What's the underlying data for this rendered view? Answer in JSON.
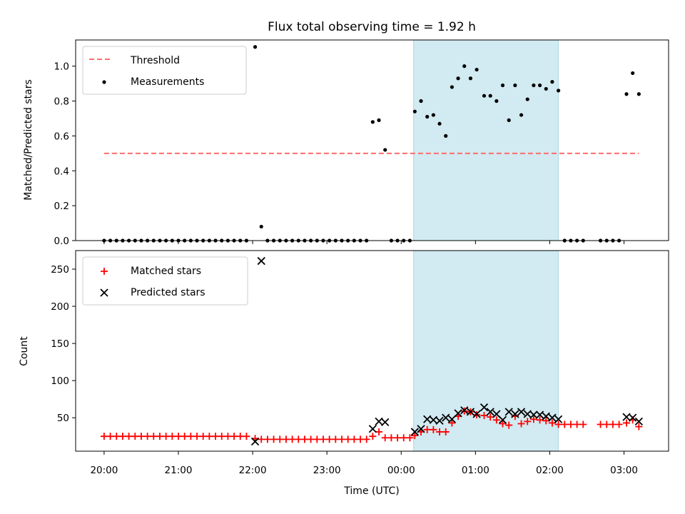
{
  "chart_data": [
    {
      "type": "scatter",
      "title": "Flux total observing time = 1.92 h",
      "ylabel": "Matched/Predicted stars",
      "xlabel": "",
      "ylim": [
        0,
        1.15
      ],
      "xlim": [
        "19:37",
        "03:36"
      ],
      "yticks": [
        "0.0",
        "0.2",
        "0.4",
        "0.6",
        "0.8",
        "1.0"
      ],
      "grid": false,
      "legend": {
        "placement": "top-left",
        "entries": [
          "Threshold",
          "Measurements"
        ]
      },
      "shaded_interval": {
        "start": "00:10",
        "end": "02:07",
        "color": "#add8e6"
      },
      "threshold": {
        "name": "Threshold",
        "value": 0.5,
        "start": "20:00",
        "end": "03:12",
        "color": "#ff6b6b"
      },
      "series": [
        {
          "name": "Measurements",
          "color": "#000000",
          "marker": "dot",
          "points": [
            [
              "20:00",
              0
            ],
            [
              "20:05",
              0
            ],
            [
              "20:10",
              0
            ],
            [
              "20:15",
              0
            ],
            [
              "20:20",
              0
            ],
            [
              "20:25",
              0
            ],
            [
              "20:30",
              0
            ],
            [
              "20:35",
              0
            ],
            [
              "20:40",
              0
            ],
            [
              "20:45",
              0
            ],
            [
              "20:50",
              0
            ],
            [
              "20:55",
              0
            ],
            [
              "21:00",
              0
            ],
            [
              "21:05",
              0
            ],
            [
              "21:10",
              0
            ],
            [
              "21:15",
              0
            ],
            [
              "21:20",
              0
            ],
            [
              "21:25",
              0
            ],
            [
              "21:30",
              0
            ],
            [
              "21:35",
              0
            ],
            [
              "21:40",
              0
            ],
            [
              "21:45",
              0
            ],
            [
              "21:50",
              0
            ],
            [
              "21:55",
              0
            ],
            [
              "22:02",
              1.11
            ],
            [
              "22:07",
              0.08
            ],
            [
              "22:12",
              0
            ],
            [
              "22:17",
              0
            ],
            [
              "22:22",
              0
            ],
            [
              "22:27",
              0
            ],
            [
              "22:32",
              0
            ],
            [
              "22:37",
              0
            ],
            [
              "22:42",
              0
            ],
            [
              "22:47",
              0
            ],
            [
              "22:52",
              0
            ],
            [
              "22:57",
              0
            ],
            [
              "23:02",
              0
            ],
            [
              "23:07",
              0
            ],
            [
              "23:12",
              0
            ],
            [
              "23:17",
              0
            ],
            [
              "23:22",
              0
            ],
            [
              "23:27",
              0
            ],
            [
              "23:32",
              0
            ],
            [
              "23:37",
              0.68
            ],
            [
              "23:42",
              0.69
            ],
            [
              "23:47",
              0.52
            ],
            [
              "23:52",
              0
            ],
            [
              "23:57",
              0
            ],
            [
              "00:02",
              0
            ],
            [
              "00:07",
              0
            ],
            [
              "00:11",
              0.74
            ],
            [
              "00:16",
              0.8
            ],
            [
              "00:21",
              0.71
            ],
            [
              "00:26",
              0.72
            ],
            [
              "00:31",
              0.67
            ],
            [
              "00:36",
              0.6
            ],
            [
              "00:41",
              0.88
            ],
            [
              "00:46",
              0.93
            ],
            [
              "00:51",
              1.0
            ],
            [
              "00:56",
              0.93
            ],
            [
              "01:01",
              0.98
            ],
            [
              "01:07",
              0.83
            ],
            [
              "01:12",
              0.83
            ],
            [
              "01:17",
              0.8
            ],
            [
              "01:22",
              0.89
            ],
            [
              "01:27",
              0.69
            ],
            [
              "01:32",
              0.89
            ],
            [
              "01:37",
              0.72
            ],
            [
              "01:42",
              0.81
            ],
            [
              "01:47",
              0.89
            ],
            [
              "01:52",
              0.89
            ],
            [
              "01:57",
              0.87
            ],
            [
              "02:02",
              0.91
            ],
            [
              "02:07",
              0.86
            ],
            [
              "02:12",
              0
            ],
            [
              "02:17",
              0
            ],
            [
              "02:22",
              0
            ],
            [
              "02:27",
              0
            ],
            [
              "02:41",
              0
            ],
            [
              "02:46",
              0
            ],
            [
              "02:51",
              0
            ],
            [
              "02:56",
              0
            ],
            [
              "03:02",
              0.84
            ],
            [
              "03:07",
              0.96
            ],
            [
              "03:12",
              0.84
            ]
          ]
        }
      ]
    },
    {
      "type": "scatter",
      "title": "",
      "ylabel": "Count",
      "xlabel": "Time (UTC)",
      "ylim": [
        5,
        275
      ],
      "xlim": [
        "19:37",
        "03:36"
      ],
      "yticks": [
        "50",
        "100",
        "150",
        "200",
        "250"
      ],
      "xticks": [
        "20:00",
        "21:00",
        "22:00",
        "23:00",
        "00:00",
        "01:00",
        "02:00",
        "03:00"
      ],
      "grid": false,
      "legend": {
        "placement": "top-left",
        "entries": [
          "Matched stars",
          "Predicted stars"
        ]
      },
      "shaded_interval": {
        "start": "00:10",
        "end": "02:07",
        "color": "#add8e6"
      },
      "series": [
        {
          "name": "Matched stars",
          "color": "#ff0000",
          "marker": "plus",
          "points": [
            [
              "20:00",
              25
            ],
            [
              "20:05",
              25
            ],
            [
              "20:10",
              25
            ],
            [
              "20:15",
              25
            ],
            [
              "20:20",
              25
            ],
            [
              "20:25",
              25
            ],
            [
              "20:30",
              25
            ],
            [
              "20:35",
              25
            ],
            [
              "20:40",
              25
            ],
            [
              "20:45",
              25
            ],
            [
              "20:50",
              25
            ],
            [
              "20:55",
              25
            ],
            [
              "21:00",
              25
            ],
            [
              "21:05",
              25
            ],
            [
              "21:10",
              25
            ],
            [
              "21:15",
              25
            ],
            [
              "21:20",
              25
            ],
            [
              "21:25",
              25
            ],
            [
              "21:30",
              25
            ],
            [
              "21:35",
              25
            ],
            [
              "21:40",
              25
            ],
            [
              "21:45",
              25
            ],
            [
              "21:50",
              25
            ],
            [
              "21:55",
              25
            ],
            [
              "22:02",
              22
            ],
            [
              "22:07",
              21
            ],
            [
              "22:12",
              21
            ],
            [
              "22:17",
              21
            ],
            [
              "22:22",
              21
            ],
            [
              "22:27",
              21
            ],
            [
              "22:32",
              21
            ],
            [
              "22:37",
              21
            ],
            [
              "22:42",
              21
            ],
            [
              "22:47",
              21
            ],
            [
              "22:52",
              21
            ],
            [
              "22:57",
              21
            ],
            [
              "23:02",
              21
            ],
            [
              "23:07",
              21
            ],
            [
              "23:12",
              21
            ],
            [
              "23:17",
              21
            ],
            [
              "23:22",
              21
            ],
            [
              "23:27",
              21
            ],
            [
              "23:32",
              21
            ],
            [
              "23:37",
              25
            ],
            [
              "23:42",
              31
            ],
            [
              "23:47",
              23
            ],
            [
              "23:52",
              23
            ],
            [
              "23:57",
              23
            ],
            [
              "00:02",
              23
            ],
            [
              "00:07",
              23
            ],
            [
              "00:11",
              26
            ],
            [
              "00:16",
              31
            ],
            [
              "00:21",
              34
            ],
            [
              "00:26",
              34
            ],
            [
              "00:31",
              31
            ],
            [
              "00:36",
              31
            ],
            [
              "00:41",
              43
            ],
            [
              "00:46",
              52
            ],
            [
              "00:51",
              59
            ],
            [
              "00:56",
              58
            ],
            [
              "01:01",
              54
            ],
            [
              "01:07",
              53
            ],
            [
              "01:12",
              51
            ],
            [
              "01:17",
              47
            ],
            [
              "01:22",
              42
            ],
            [
              "01:27",
              40
            ],
            [
              "01:32",
              52
            ],
            [
              "01:37",
              42
            ],
            [
              "01:42",
              45
            ],
            [
              "01:47",
              48
            ],
            [
              "01:52",
              47
            ],
            [
              "01:57",
              46
            ],
            [
              "02:02",
              43
            ],
            [
              "02:07",
              41
            ],
            [
              "02:12",
              41
            ],
            [
              "02:17",
              41
            ],
            [
              "02:22",
              41
            ],
            [
              "02:27",
              41
            ],
            [
              "02:41",
              41
            ],
            [
              "02:46",
              41
            ],
            [
              "02:51",
              41
            ],
            [
              "02:56",
              41
            ],
            [
              "03:02",
              43
            ],
            [
              "03:07",
              47
            ],
            [
              "03:12",
              38
            ]
          ]
        },
        {
          "name": "Predicted stars",
          "color": "#000000",
          "marker": "x",
          "points": [
            [
              "22:02",
              18
            ],
            [
              "22:07",
              261
            ],
            [
              "23:37",
              35
            ],
            [
              "23:42",
              45
            ],
            [
              "23:47",
              44
            ],
            [
              "00:11",
              31
            ],
            [
              "00:16",
              35
            ],
            [
              "00:21",
              48
            ],
            [
              "00:26",
              47
            ],
            [
              "00:31",
              46
            ],
            [
              "00:36",
              50
            ],
            [
              "00:41",
              48
            ],
            [
              "00:46",
              56
            ],
            [
              "00:51",
              60
            ],
            [
              "00:56",
              58
            ],
            [
              "01:01",
              55
            ],
            [
              "01:07",
              64
            ],
            [
              "01:12",
              58
            ],
            [
              "01:17",
              55
            ],
            [
              "01:22",
              47
            ],
            [
              "01:27",
              58
            ],
            [
              "01:32",
              55
            ],
            [
              "01:37",
              58
            ],
            [
              "01:42",
              55
            ],
            [
              "01:47",
              54
            ],
            [
              "01:52",
              54
            ],
            [
              "01:57",
              52
            ],
            [
              "02:02",
              50
            ],
            [
              "02:07",
              48
            ],
            [
              "03:02",
              51
            ],
            [
              "03:07",
              50
            ],
            [
              "03:12",
              45
            ]
          ]
        }
      ]
    }
  ]
}
